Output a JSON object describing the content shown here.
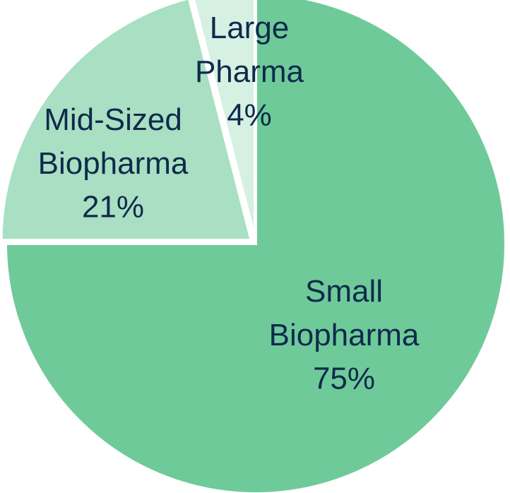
{
  "chart_data": {
    "type": "pie",
    "categories": [
      "Small Biopharma",
      "Mid-Sized Biopharma",
      "Large Pharma"
    ],
    "values": [
      75,
      21,
      4
    ],
    "value_labels": [
      "75%",
      "21%",
      "4%"
    ],
    "colors": [
      "#6fca9a",
      "#a9dfc2",
      "#d6f0e2"
    ]
  }
}
